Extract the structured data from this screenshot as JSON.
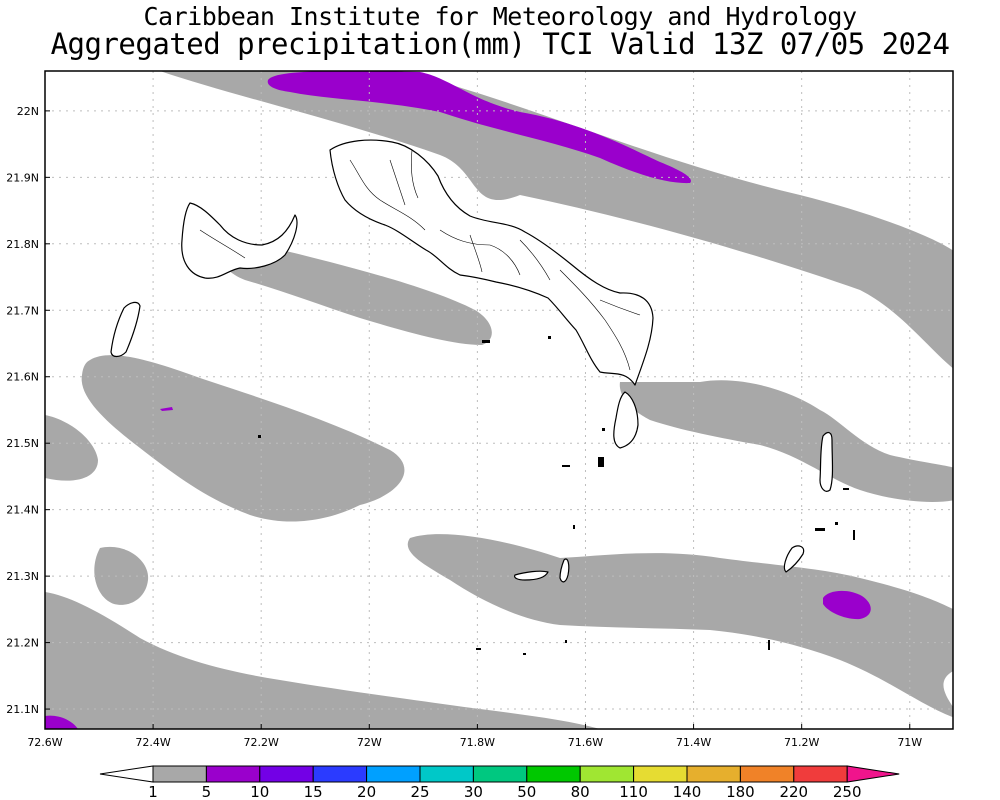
{
  "title_line1": "Caribbean Institute for Meteorology and Hydrology",
  "title_line2": "Aggregated precipitation(mm) TCI Valid 13Z 07/05 2024",
  "map": {
    "lon_range": [
      -72.6,
      -70.92
    ],
    "lat_range": [
      21.07,
      22.06
    ],
    "x_ticks": [
      "72.6W",
      "72.4W",
      "72.2W",
      "72W",
      "71.8W",
      "71.6W",
      "71.4W",
      "71.2W",
      "71W"
    ],
    "y_ticks": [
      "22N",
      "21.9N",
      "21.8N",
      "21.7N",
      "21.6N",
      "21.5N",
      "21.4N",
      "21.3N",
      "21.2N",
      "21.1N"
    ],
    "grid": true
  },
  "colorbar": {
    "labels": [
      "1",
      "5",
      "10",
      "15",
      "20",
      "25",
      "30",
      "50",
      "80",
      "110",
      "140",
      "180",
      "220",
      "250"
    ],
    "colors": [
      "#ffffff",
      "#a8a8a8",
      "#9a00cc",
      "#7300e6",
      "#2b3bff",
      "#00a0ff",
      "#00c8c8",
      "#00c880",
      "#00c800",
      "#a0e632",
      "#e6dc32",
      "#e6af2d",
      "#f08228",
      "#f03c3c",
      "#f0148c"
    ]
  }
}
